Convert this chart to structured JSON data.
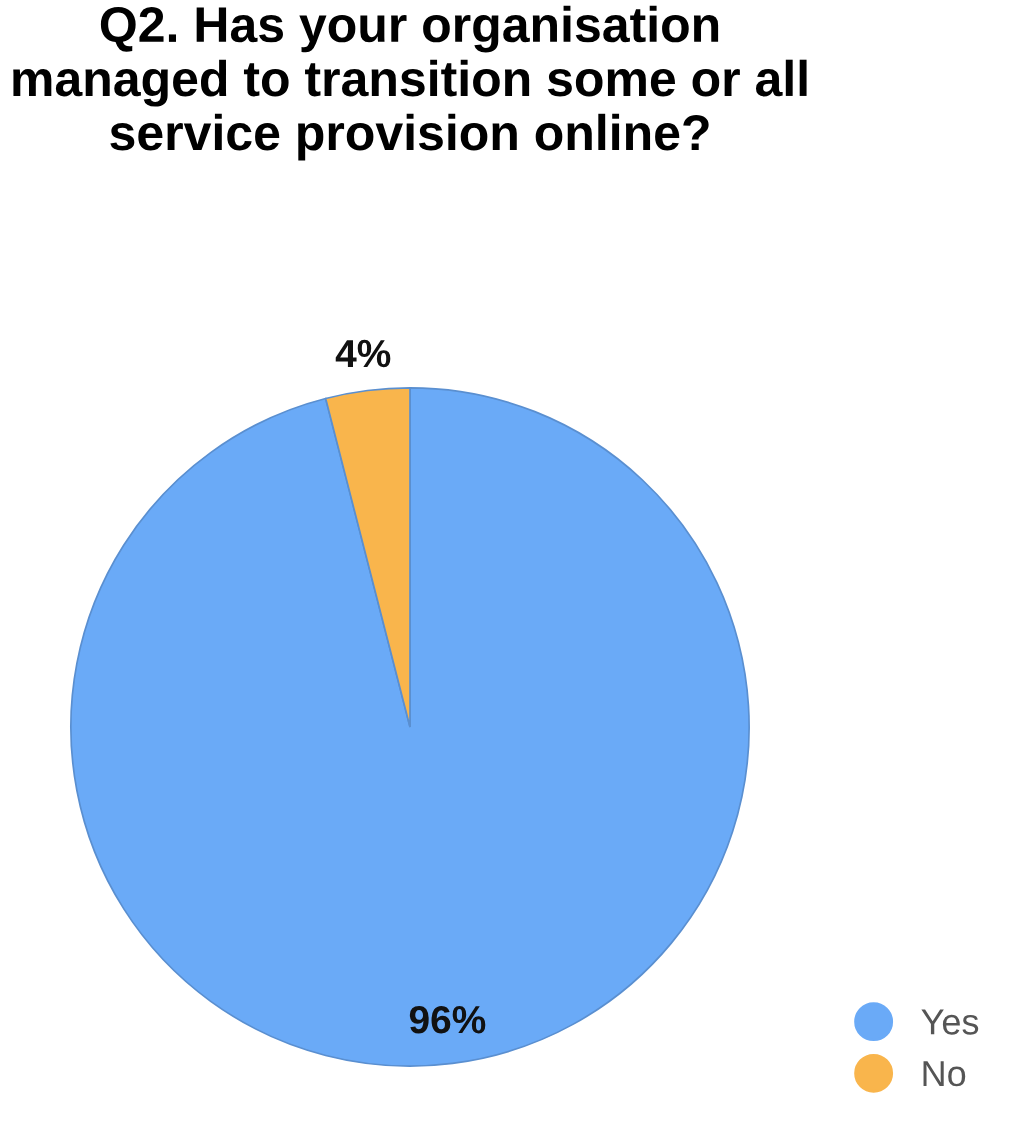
{
  "chart_data": {
    "type": "pie",
    "title": "Q2. Has your organisation managed to transition some or all service provision online?",
    "categories": [
      "Yes",
      "No"
    ],
    "values": [
      96,
      4
    ],
    "colors": [
      "#6aaaf7",
      "#f9b54c"
    ],
    "value_labels": [
      "96%",
      "4%"
    ],
    "legend": "bottom right"
  }
}
